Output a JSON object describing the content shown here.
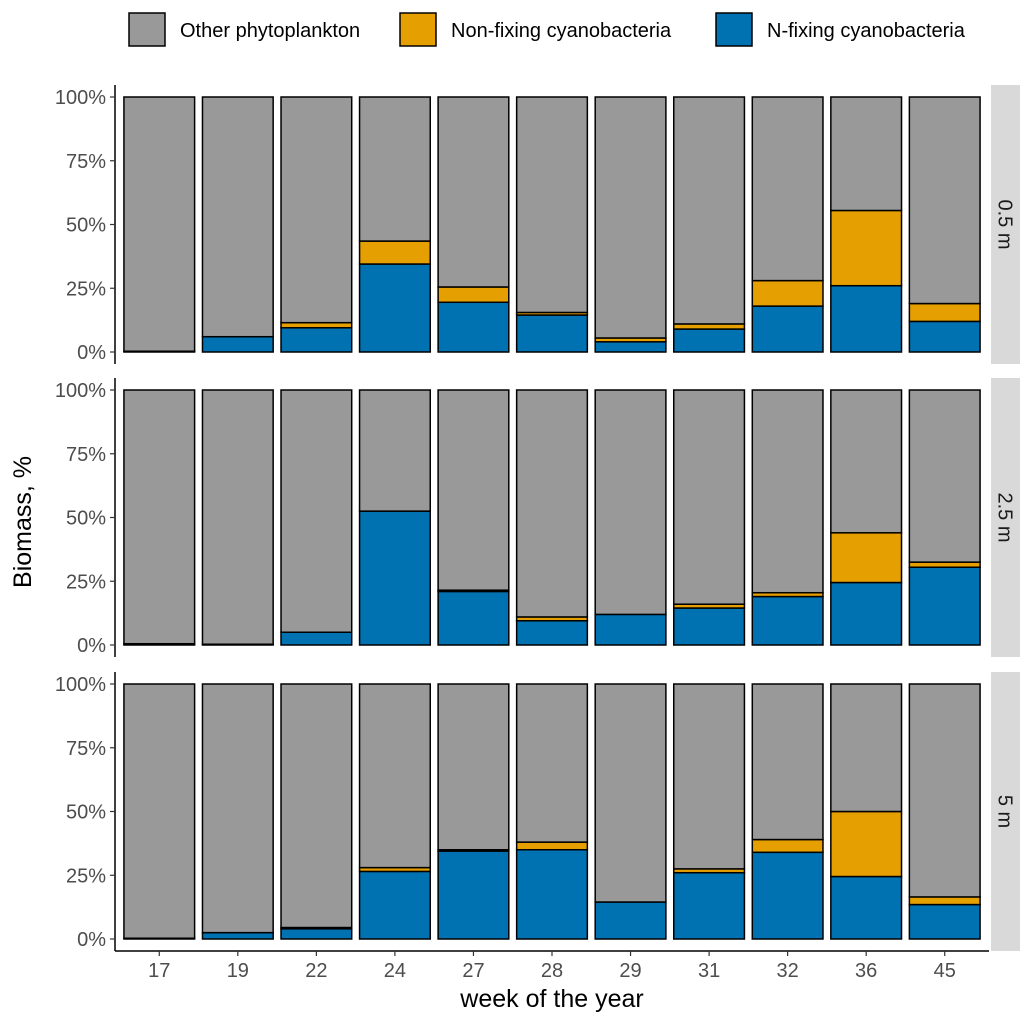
{
  "chart_data": {
    "type": "bar",
    "stacked": true,
    "title": "",
    "xlabel": "week of the year",
    "ylabel": "Biomass, %",
    "ylim": [
      0,
      100
    ],
    "y_ticks": [
      0,
      25,
      50,
      75,
      100
    ],
    "y_tick_labels": [
      "0%",
      "25%",
      "50%",
      "75%",
      "100%"
    ],
    "categories": [
      "17",
      "19",
      "22",
      "24",
      "27",
      "28",
      "29",
      "31",
      "32",
      "36",
      "45"
    ],
    "legend": {
      "position": "top",
      "entries": [
        {
          "name": "Other phytoplankton",
          "color": "#999999"
        },
        {
          "name": "Non-fixing cyanobacteria",
          "color": "#E69F00"
        },
        {
          "name": "N-fixing cyanobacteria",
          "color": "#0072B2"
        }
      ]
    },
    "panels": [
      {
        "label": "0.5 m",
        "series": [
          {
            "name": "N-fixing cyanobacteria",
            "values": [
              0.3,
              6,
              9.5,
              34.5,
              19.5,
              14.5,
              4,
              9,
              18,
              26,
              12
            ]
          },
          {
            "name": "Non-fixing cyanobacteria",
            "values": [
              0,
              0,
              2,
              9,
              6,
              1,
              1.5,
              2,
              10,
              29.5,
              7
            ]
          },
          {
            "name": "Other phytoplankton",
            "values": [
              99.7,
              94,
              88.5,
              56.5,
              74.5,
              84.5,
              94.5,
              89,
              72,
              44.5,
              81
            ]
          }
        ]
      },
      {
        "label": "2.5 m",
        "series": [
          {
            "name": "N-fixing cyanobacteria",
            "values": [
              0.5,
              0.3,
              5,
              52.5,
              21,
              9.5,
              12,
              14.5,
              19,
              24.5,
              30.5
            ]
          },
          {
            "name": "Non-fixing cyanobacteria",
            "values": [
              0,
              0,
              0,
              0,
              0.5,
              1.5,
              0,
              1.5,
              1.5,
              19.5,
              2
            ]
          },
          {
            "name": "Other phytoplankton",
            "values": [
              99.5,
              99.7,
              95,
              47.5,
              78.5,
              89,
              88,
              84,
              79.5,
              56,
              67.5
            ]
          }
        ]
      },
      {
        "label": "5 m",
        "series": [
          {
            "name": "N-fixing cyanobacteria",
            "values": [
              0.3,
              2.5,
              4,
              26.5,
              34.5,
              35,
              14.5,
              26,
              34,
              24.5,
              13.5
            ]
          },
          {
            "name": "Non-fixing cyanobacteria",
            "values": [
              0,
              0,
              0.5,
              1.5,
              0.5,
              3,
              0,
              1.5,
              5,
              25.5,
              3
            ]
          },
          {
            "name": "Other phytoplankton",
            "values": [
              99.7,
              97.5,
              95.5,
              72,
              65,
              62,
              85.5,
              72.5,
              61,
              50,
              83.5
            ]
          }
        ]
      }
    ]
  }
}
